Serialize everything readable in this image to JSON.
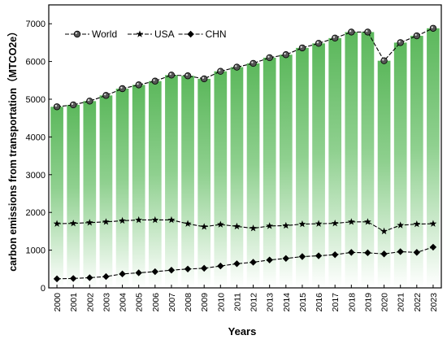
{
  "chart_data": {
    "type": "bar",
    "title": "",
    "xlabel": "Years",
    "ylabel": "carbon emissions from transportation（MTCO2e）",
    "ylim": [
      0,
      7500
    ],
    "yticks": [
      0,
      1000,
      2000,
      3000,
      4000,
      5000,
      6000,
      7000
    ],
    "grid": false,
    "legend_position": "top-left",
    "colors": {
      "bar_top": "#5cb85c",
      "bar_bottom": "#ffffff",
      "line": "#000000",
      "world_marker": "#555555"
    },
    "categories": [
      "2000",
      "2001",
      "2002",
      "2003",
      "2004",
      "2005",
      "2006",
      "2007",
      "2008",
      "2009",
      "2010",
      "2011",
      "2012",
      "2013",
      "2014",
      "2015",
      "2016",
      "2017",
      "2018",
      "2019",
      "2020",
      "2021",
      "2022",
      "2023"
    ],
    "bars": {
      "name": "World",
      "values": [
        4800,
        4850,
        4950,
        5100,
        5280,
        5380,
        5480,
        5640,
        5620,
        5540,
        5740,
        5850,
        5950,
        6100,
        6180,
        6360,
        6480,
        6620,
        6780,
        6780,
        6020,
        6500,
        6680,
        6880
      ]
    },
    "series": [
      {
        "name": "World",
        "marker": "circle",
        "values": [
          4800,
          4850,
          4950,
          5100,
          5280,
          5380,
          5480,
          5640,
          5620,
          5540,
          5740,
          5850,
          5950,
          6100,
          6180,
          6360,
          6480,
          6620,
          6780,
          6780,
          6020,
          6500,
          6680,
          6880
        ]
      },
      {
        "name": "USA",
        "marker": "star",
        "values": [
          1700,
          1710,
          1730,
          1750,
          1780,
          1800,
          1800,
          1800,
          1700,
          1620,
          1680,
          1630,
          1580,
          1640,
          1650,
          1690,
          1700,
          1710,
          1750,
          1750,
          1500,
          1660,
          1690,
          1700
        ]
      },
      {
        "name": "CHN",
        "marker": "diamond",
        "values": [
          240,
          250,
          270,
          300,
          370,
          400,
          430,
          470,
          500,
          520,
          580,
          640,
          680,
          740,
          780,
          830,
          850,
          880,
          940,
          930,
          900,
          960,
          940,
          1080
        ]
      }
    ]
  }
}
